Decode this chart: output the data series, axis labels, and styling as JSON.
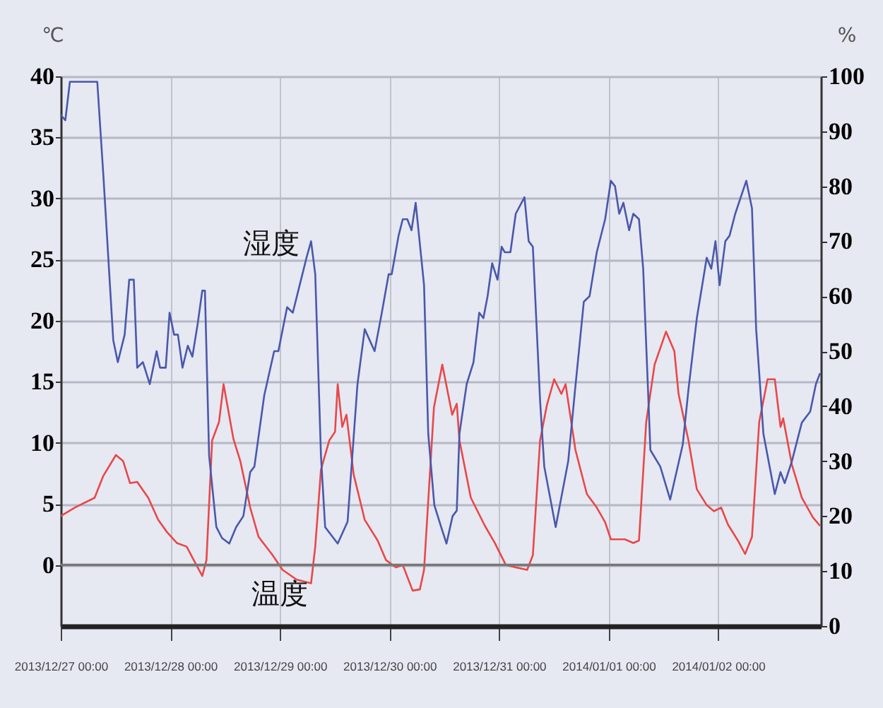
{
  "chart_data": {
    "type": "line",
    "ylabel": "℃",
    "y2label": "%",
    "xlim": [
      "2013-12-27T00:00",
      "2014-01-02T22:30"
    ],
    "xticks": [
      {
        "value": "2013-12-27T00:00",
        "label": "2013/12/27 00:00"
      },
      {
        "value": "2013-12-28T00:00",
        "label": "2013/12/28 00:00"
      },
      {
        "value": "2013-12-29T00:00",
        "label": "2013/12/29 00:00"
      },
      {
        "value": "2013-12-30T00:00",
        "label": "2013/12/30 00:00"
      },
      {
        "value": "2013-12-31T00:00",
        "label": "2013/12/31 00:00"
      },
      {
        "value": "2014-01-01T00:00",
        "label": "2014/01/01 00:00"
      },
      {
        "value": "2014-01-02T00:00",
        "label": "2014/01/02 00:00"
      }
    ],
    "ylim": [
      -5,
      40
    ],
    "yticks": [
      0,
      5,
      10,
      15,
      20,
      25,
      30,
      35,
      40
    ],
    "y2lim": [
      0,
      100
    ],
    "y2ticks": [
      0,
      10,
      20,
      30,
      40,
      50,
      60,
      70,
      80,
      90,
      100
    ],
    "grid": true,
    "line_style": "solid",
    "ref_lines": [
      {
        "axis": "y",
        "value": 0,
        "color": "#777777"
      }
    ],
    "annotations": [
      "湿度",
      "温度"
    ],
    "series": [
      {
        "color": "#e84848",
        "axis": "y",
        "x": [
          "2013-12-27T00:00",
          "2013-12-27T03:05",
          "2013-12-27T07:25",
          "2013-12-27T09:20",
          "2013-12-27T12:05",
          "2013-12-27T13:40",
          "2013-12-27T15:10",
          "2013-12-27T16:45",
          "2013-12-27T19:10",
          "2013-12-27T21:20",
          "2013-12-27T23:15",
          "2013-12-28T01:25",
          "2013-12-28T03:35",
          "2013-12-28T05:25",
          "2013-12-28T07:00",
          "2013-12-28T07:55",
          "2013-12-28T09:10",
          "2013-12-28T10:40",
          "2013-12-28T11:40",
          "2013-12-28T13:50",
          "2013-12-28T15:20",
          "2013-12-28T17:30",
          "2013-12-28T19:20",
          "2013-12-28T22:25",
          "2013-12-29T00:35",
          "2013-12-29T03:40",
          "2013-12-29T06:50",
          "2013-12-29T07:45",
          "2013-12-29T09:00",
          "2013-12-29T10:50",
          "2013-12-29T12:05",
          "2013-12-29T12:40",
          "2013-12-29T13:40",
          "2013-12-29T14:35",
          "2013-12-29T16:10",
          "2013-12-29T18:35",
          "2013-12-29T21:25",
          "2013-12-29T23:15",
          "2013-12-30T01:25",
          "2013-12-30T02:55",
          "2013-12-30T05:05",
          "2013-12-30T06:40",
          "2013-12-30T07:35",
          "2013-12-30T09:45",
          "2013-12-30T11:35",
          "2013-12-30T13:45",
          "2013-12-30T14:45",
          "2013-12-30T15:20",
          "2013-12-30T17:50",
          "2013-12-30T20:55",
          "2013-12-30T23:05",
          "2013-12-31T01:30",
          "2013-12-31T03:40",
          "2013-12-31T06:10",
          "2013-12-31T07:25",
          "2013-12-31T09:00",
          "2013-12-31T10:30",
          "2013-12-31T12:05",
          "2013-12-31T13:40",
          "2013-12-31T14:35",
          "2013-12-31T16:45",
          "2013-12-31T19:15",
          "2013-12-31T21:25",
          "2013-12-31T23:15",
          "2014-01-01T00:30",
          "2014-01-01T03:35",
          "2014-01-01T05:25",
          "2014-01-01T06:40",
          "2014-01-01T08:15",
          "2014-01-01T10:05",
          "2014-01-01T12:35",
          "2014-01-01T14:25",
          "2014-01-01T15:20",
          "2014-01-01T17:30",
          "2014-01-01T19:20",
          "2014-01-01T21:30",
          "2014-01-01T23:05",
          "2014-01-02T00:40",
          "2014-01-02T02:10",
          "2014-01-02T04:20",
          "2014-01-02T05:55",
          "2014-01-02T07:25",
          "2014-01-02T09:00",
          "2014-01-02T10:50",
          "2014-01-02T12:25",
          "2014-01-02T13:40",
          "2014-01-02T14:15",
          "2014-01-02T16:10",
          "2014-01-02T18:20",
          "2014-01-02T20:45",
          "2014-01-02T22:20"
        ],
        "values": [
          4.0,
          4.7,
          5.5,
          7.3,
          9.0,
          8.5,
          6.7,
          6.8,
          5.5,
          3.7,
          2.7,
          1.8,
          1.5,
          0.2,
          -0.9,
          0.4,
          10.2,
          11.7,
          14.8,
          10.3,
          8.5,
          4.7,
          2.3,
          0.8,
          -0.4,
          -1.2,
          -1.5,
          1.5,
          7.8,
          10.2,
          10.9,
          14.8,
          11.3,
          12.3,
          7.4,
          3.7,
          2.0,
          0.4,
          -0.2,
          0,
          -2.1,
          -2.0,
          -0.4,
          12.9,
          16.4,
          12.3,
          13.2,
          10.2,
          5.5,
          3.2,
          1.8,
          0,
          -0.2,
          -0.4,
          0.8,
          10.2,
          13.1,
          15.2,
          14.0,
          14.8,
          9.4,
          5.8,
          4.7,
          3.5,
          2.1,
          2.1,
          1.8,
          2.0,
          11.7,
          16.4,
          19.1,
          17.5,
          14.0,
          10.2,
          6.2,
          4.9,
          4.4,
          4.7,
          3.3,
          2.0,
          0.9,
          2.3,
          11.7,
          15.2,
          15.2,
          11.3,
          12.0,
          8.2,
          5.5,
          3.9,
          3.2
        ]
      },
      {
        "color": "#4a58aa",
        "axis": "y2",
        "x": [
          "2013-12-27T00:00",
          "2013-12-27T01:00",
          "2013-12-27T02:00",
          "2013-12-27T08:00",
          "2013-12-27T09:20",
          "2013-12-27T11:30",
          "2013-12-27T12:30",
          "2013-12-27T14:00",
          "2013-12-27T15:00",
          "2013-12-27T16:00",
          "2013-12-27T16:45",
          "2013-12-27T18:00",
          "2013-12-27T19:30",
          "2013-12-27T21:00",
          "2013-12-27T21:45",
          "2013-12-27T23:00",
          "2013-12-27T23:50",
          "2013-12-28T00:50",
          "2013-12-28T01:40",
          "2013-12-28T02:40",
          "2013-12-28T03:50",
          "2013-12-28T04:50",
          "2013-12-28T06:00",
          "2013-12-28T07:00",
          "2013-12-28T07:35",
          "2013-12-28T08:30",
          "2013-12-28T10:05",
          "2013-12-28T11:20",
          "2013-12-28T12:55",
          "2013-12-28T14:25",
          "2013-12-28T16:00",
          "2013-12-28T17:30",
          "2013-12-28T18:25",
          "2013-12-28T20:35",
          "2013-12-28T22:45",
          "2013-12-28T23:40",
          "2013-12-29T01:35",
          "2013-12-29T02:50",
          "2013-12-29T04:20",
          "2013-12-29T05:50",
          "2013-12-29T06:50",
          "2013-12-29T07:45",
          "2013-12-29T09:00",
          "2013-12-29T09:55",
          "2013-12-29T12:40",
          "2013-12-29T14:50",
          "2013-12-29T17:00",
          "2013-12-29T18:35",
          "2013-12-29T20:45",
          "2013-12-29T22:20",
          "2013-12-29T23:50",
          "2013-12-30T00:30",
          "2013-12-30T02:00",
          "2013-12-30T02:55",
          "2013-12-30T03:55",
          "2013-12-30T04:50",
          "2013-12-30T05:45",
          "2013-12-30T07:35",
          "2013-12-30T08:30",
          "2013-12-30T09:50",
          "2013-12-30T11:20",
          "2013-12-30T12:30",
          "2013-12-30T13:50",
          "2013-12-30T14:45",
          "2013-12-30T15:20",
          "2013-12-30T16:55",
          "2013-12-30T18:25",
          "2013-12-30T19:40",
          "2013-12-30T20:35",
          "2013-12-30T21:30",
          "2013-12-30T22:30",
          "2013-12-30T23:40",
          "2013-12-31T00:35",
          "2013-12-31T01:15",
          "2013-12-31T02:30",
          "2013-12-31T03:40",
          "2013-12-31T05:35",
          "2013-12-31T06:30",
          "2013-12-31T07:25",
          "2013-12-31T09:00",
          "2013-12-31T09:55",
          "2013-12-31T12:25",
          "2013-12-31T15:10",
          "2013-12-31T16:40",
          "2013-12-31T18:35",
          "2013-12-31T19:50",
          "2013-12-31T21:25",
          "2013-12-31T23:15",
          "2014-01-01T00:30",
          "2014-01-01T01:25",
          "2014-01-01T02:20",
          "2014-01-01T03:15",
          "2014-01-01T04:30",
          "2014-01-01T05:25",
          "2014-01-01T06:40",
          "2014-01-01T07:35",
          "2014-01-01T09:10",
          "2014-01-01T11:20",
          "2014-01-01T13:30",
          "2014-01-01T16:15",
          "2014-01-01T17:30",
          "2014-01-01T19:20",
          "2014-01-01T21:30",
          "2014-01-01T22:30",
          "2014-01-01T23:25",
          "2014-01-02T00:20",
          "2014-01-02T01:35",
          "2014-01-02T02:30",
          "2014-01-02T03:45",
          "2014-01-02T06:10",
          "2014-01-02T07:25",
          "2014-01-02T08:20",
          "2014-01-02T09:55",
          "2014-01-02T12:25",
          "2014-01-02T13:40",
          "2014-01-02T14:35",
          "2014-01-02T16:10",
          "2014-01-02T18:20",
          "2014-01-02T20:10",
          "2014-01-02T21:25",
          "2014-01-02T22:20"
        ],
        "values": [
          93,
          92,
          99,
          99,
          82,
          52,
          48,
          53,
          63,
          63,
          47,
          48,
          44,
          50,
          47,
          47,
          57,
          53,
          53,
          47,
          51,
          49,
          55,
          61,
          61,
          31,
          18,
          16,
          15,
          18,
          20,
          28,
          29,
          42,
          50,
          50,
          58,
          57,
          62,
          67,
          70,
          64,
          31,
          18,
          15,
          19,
          44,
          54,
          50,
          57,
          64,
          64,
          71,
          74,
          74,
          72,
          77,
          62,
          35,
          22,
          18,
          15,
          20,
          21,
          35,
          44,
          48,
          57,
          56,
          60,
          66,
          63,
          69,
          68,
          68,
          75,
          78,
          70,
          69,
          41,
          29,
          18,
          30,
          43,
          59,
          60,
          68,
          74,
          81,
          80,
          75,
          77,
          72,
          75,
          74,
          65,
          32,
          29,
          23,
          33,
          43,
          56,
          67,
          65,
          70,
          62,
          70,
          71,
          75,
          81,
          76,
          54,
          35,
          24,
          28,
          26,
          30,
          37,
          39,
          44,
          46
        ]
      }
    ]
  }
}
